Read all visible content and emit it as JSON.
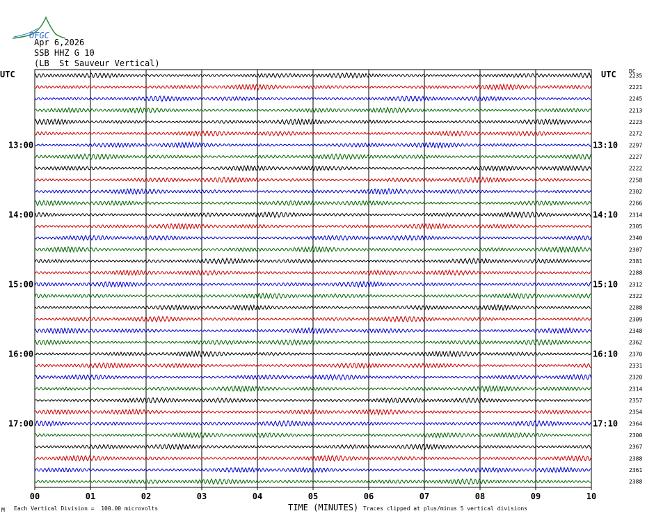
{
  "logo": {
    "text": "OFGC",
    "color": "#2a8a3a"
  },
  "header": {
    "date": "Apr 6,2026",
    "station": "SSB HHZ G 10",
    "location": "(LB  St Sauveur Vertical)"
  },
  "left_axis_title": "UTC",
  "right_axis_title": "UTC",
  "right_col_title": "DC",
  "footer": {
    "scale_note": "Each Vertical Division =  100.00 microvolts",
    "clip_note": "Traces clipped at plus/minus 5 vertical divisions",
    "mark": "M"
  },
  "chart_data": {
    "type": "line",
    "title": "",
    "xlabel": "TIME (MINUTES)",
    "xlim": [
      0,
      10
    ],
    "x_ticks": [
      "00",
      "01",
      "02",
      "03",
      "04",
      "05",
      "06",
      "07",
      "08",
      "09",
      "10"
    ],
    "trace_colors": [
      "#000000",
      "#cc0000",
      "#0000cc",
      "#006600"
    ],
    "left_time_labels": [
      {
        "trace": 6,
        "label": "13:00"
      },
      {
        "trace": 12,
        "label": "14:00"
      },
      {
        "trace": 18,
        "label": "15:00"
      },
      {
        "trace": 24,
        "label": "16:00"
      },
      {
        "trace": 30,
        "label": "17:00"
      }
    ],
    "right_time_labels": [
      {
        "trace": 6,
        "label": "13:10"
      },
      {
        "trace": 12,
        "label": "14:10"
      },
      {
        "trace": 18,
        "label": "15:10"
      },
      {
        "trace": 24,
        "label": "16:10"
      },
      {
        "trace": 30,
        "label": "17:10"
      }
    ],
    "dc_offsets": [
      "2235",
      "2221",
      "2245",
      "2213",
      "2223",
      "2272",
      "2297",
      "2227",
      "2222",
      "2258",
      "2302",
      "2266",
      "2314",
      "2305",
      "2340",
      "2307",
      "2381",
      "2288",
      "2312",
      "2322",
      "2288",
      "2309",
      "2348",
      "2362",
      "2370",
      "2331",
      "2320",
      "2314",
      "2357",
      "2354",
      "2364",
      "2300",
      "2367",
      "2388",
      "2361",
      "2388"
    ]
  }
}
